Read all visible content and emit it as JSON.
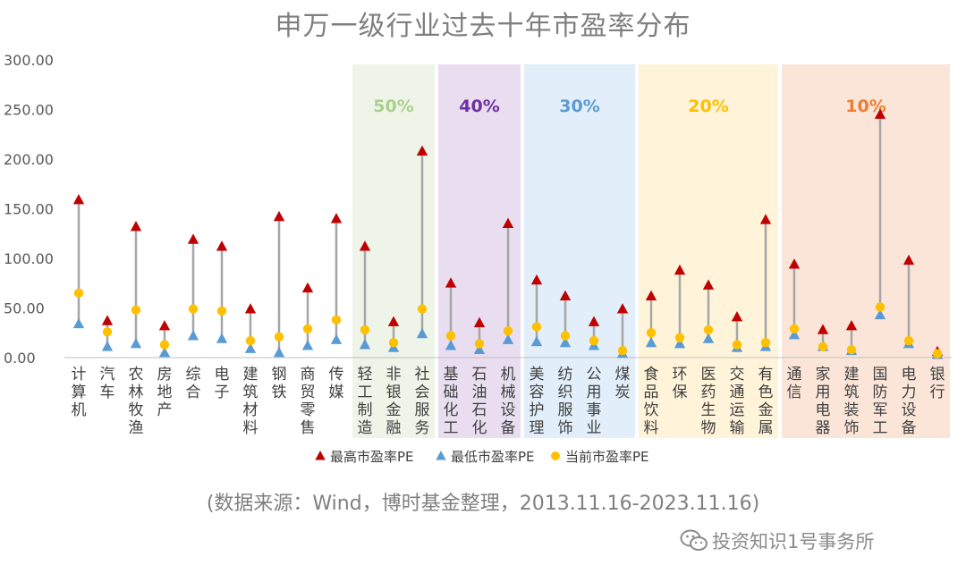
{
  "chart_data": {
    "type": "scatter",
    "title": "申万一级行业过去十年市盈率分布",
    "source": "(数据来源：Wind，博时基金整理，2013.11.16-2023.11.16)",
    "ylim": [
      0,
      300
    ],
    "yticks": [
      "0.00",
      "50.00",
      "100.00",
      "150.00",
      "200.00",
      "250.00",
      "300.00"
    ],
    "grid": false,
    "legend_position": "bottom",
    "categories": [
      "计算机",
      "汽车",
      "农林牧渔",
      "房地产",
      "综合",
      "电子",
      "建筑材料",
      "钢铁",
      "商贸零售",
      "传媒",
      "轻工制造",
      "非银金融",
      "社会服务",
      "基础化工",
      "石油石化",
      "机械设备",
      "美容护理",
      "纺织服饰",
      "公用事业",
      "煤炭",
      "食品饮料",
      "环保",
      "医药生物",
      "交通运输",
      "有色金属",
      "通信",
      "家用电器",
      "建筑装饰",
      "国防军工",
      "电力设备",
      "银行"
    ],
    "series": [
      {
        "name": "最高市盈率PE",
        "marker": "triangle",
        "color": "#c00000",
        "values": [
          159,
          37,
          132,
          32,
          119,
          112,
          49,
          142,
          70,
          140,
          112,
          36,
          208,
          75,
          35,
          135,
          78,
          62,
          36,
          49,
          62,
          88,
          73,
          41,
          139,
          94,
          28,
          32,
          245,
          98,
          6
        ]
      },
      {
        "name": "最低市盈率PE",
        "marker": "triangle",
        "color": "#5b9bd5",
        "values": [
          34,
          11,
          14,
          5,
          22,
          19,
          9,
          5,
          12,
          18,
          13,
          10,
          24,
          12,
          8,
          18,
          16,
          15,
          12,
          4,
          15,
          14,
          19,
          10,
          11,
          23,
          11,
          7,
          43,
          14,
          3
        ]
      },
      {
        "name": "当前市盈率PE",
        "marker": "circle",
        "color": "#ffc000",
        "values": [
          65,
          26,
          48,
          13,
          49,
          47,
          17,
          21,
          29,
          38,
          28,
          15,
          49,
          22,
          14,
          27,
          31,
          22,
          17,
          7,
          25,
          20,
          28,
          13,
          15,
          29,
          11,
          8,
          51,
          17,
          4
        ]
      }
    ],
    "bands": [
      {
        "label": "50%",
        "from": "轻工制造",
        "to": "社会服务",
        "color": "#a9d18e",
        "fill": "#eef5e8"
      },
      {
        "label": "40%",
        "from": "基础化工",
        "to": "机械设备",
        "color": "#7030a0",
        "fill": "#e8def0"
      },
      {
        "label": "30%",
        "from": "美容护理",
        "to": "煤炭",
        "color": "#5b9bd5",
        "fill": "#e2eef9"
      },
      {
        "label": "20%",
        "from": "食品饮料",
        "to": "有色金属",
        "color": "#ffc000",
        "fill": "#fff4d9"
      },
      {
        "label": "10%",
        "from": "通信",
        "to": "银行",
        "color": "#ed7d31",
        "fill": "#fbe5d8"
      }
    ]
  },
  "watermark": {
    "text": "投资知识1号事务所",
    "icon": "wechat-icon"
  }
}
